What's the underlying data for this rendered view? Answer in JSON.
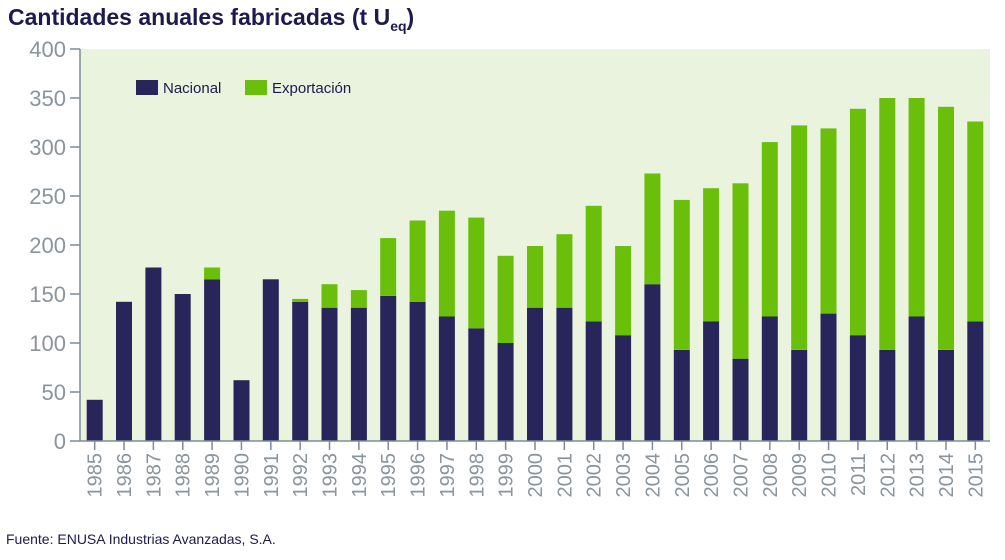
{
  "header": {
    "title_main": "Cantidades anuales fabricadas (t U",
    "title_sub": "eq",
    "title_close": ")"
  },
  "footer": {
    "source": "Fuente: ENUSA Industrias Avanzadas, S.A."
  },
  "chart_data": {
    "type": "bar",
    "stacked": true,
    "title": "Cantidades anuales fabricadas (t Ueq)",
    "xlabel": "",
    "ylabel": "",
    "ylim": [
      0,
      400
    ],
    "yticks": [
      0,
      50,
      100,
      150,
      200,
      250,
      300,
      350,
      400
    ],
    "grid": false,
    "legend_position": "top-left",
    "categories": [
      "1985",
      "1986",
      "1987",
      "1988",
      "1989",
      "1990",
      "1991",
      "1992",
      "1993",
      "1994",
      "1995",
      "1996",
      "1997",
      "1998",
      "1999",
      "2000",
      "2001",
      "2002",
      "2003",
      "2004",
      "2005",
      "2006",
      "2007",
      "2008",
      "2009",
      "2010",
      "2011",
      "2012",
      "2013",
      "2014",
      "2015"
    ],
    "series": [
      {
        "name": "Nacional",
        "color": "#28255a",
        "values": [
          42,
          142,
          177,
          150,
          165,
          62,
          165,
          142,
          136,
          136,
          148,
          142,
          127,
          115,
          100,
          136,
          136,
          122,
          108,
          160,
          93,
          122,
          84,
          127,
          93,
          130,
          108,
          93,
          127,
          93,
          122
        ]
      },
      {
        "name": "Exportación",
        "color": "#6abf0b",
        "values": [
          0,
          0,
          0,
          0,
          12,
          0,
          0,
          3,
          24,
          18,
          59,
          83,
          108,
          113,
          89,
          63,
          75,
          118,
          91,
          113,
          153,
          136,
          179,
          178,
          229,
          189,
          231,
          257,
          223,
          248,
          204
        ]
      }
    ],
    "colors": {
      "plot_background": "#eaf3dd",
      "axis": "#7f8b95",
      "tick_label": "#8a949c",
      "legend_text": "#1e1a4d"
    }
  }
}
